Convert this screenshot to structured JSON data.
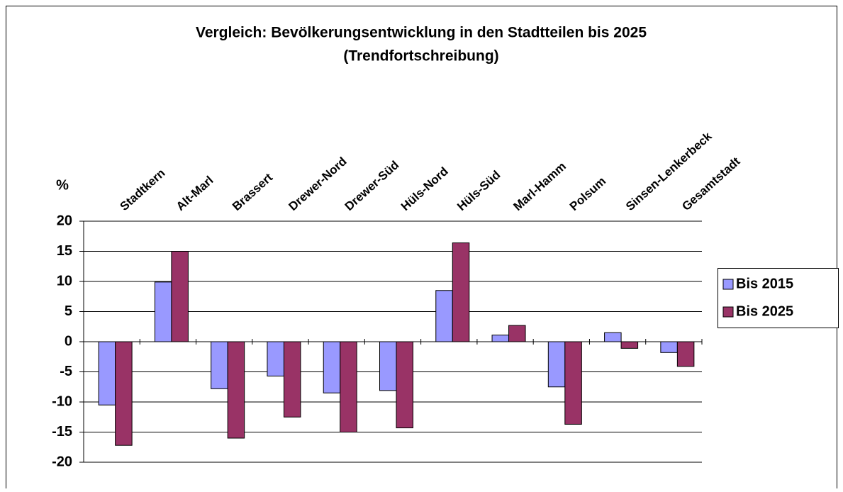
{
  "chart_data": {
    "type": "bar",
    "title": "Vergleich: Bevölkerungsentwicklung in den Stadtteilen bis 2025",
    "subtitle": "(Trendfortschreibung)",
    "y_label": "%",
    "categories": [
      "Stadtkern",
      "Alt-Marl",
      "Brassert",
      "Drewer-Nord",
      "Drewer-Süd",
      "Hüls-Nord",
      "Hüls-Süd",
      "Marl-Hamm",
      "Polsum",
      "Sinsen-Lenkerbeck",
      "Gesamtstadt"
    ],
    "series": [
      {
        "name": "Bis 2015",
        "color": "#9999ff",
        "values": [
          -10.5,
          9.9,
          -7.8,
          -5.7,
          -8.5,
          -8.1,
          8.5,
          1.1,
          -7.5,
          1.5,
          -1.8
        ]
      },
      {
        "name": "Bis 2025",
        "color": "#993366",
        "values": [
          -17.2,
          15,
          -16,
          -12.5,
          -15,
          -14.3,
          16.4,
          2.7,
          -13.7,
          -1.1,
          -4.1
        ]
      }
    ],
    "ylim": [
      -20,
      20
    ],
    "yticks": [
      -20,
      -15,
      -10,
      -5,
      0,
      5,
      10,
      15,
      20
    ],
    "grid": true,
    "legend": "right"
  }
}
